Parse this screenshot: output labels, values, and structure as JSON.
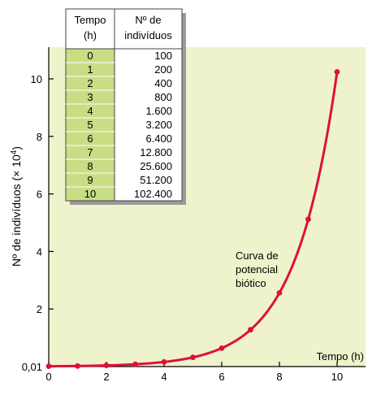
{
  "colors": {
    "plot_background": "#eef3cc",
    "curve": "#e0103c",
    "table_time_column": "#c9dd84",
    "table_header": "#ffffff",
    "table_values": "#ffffff"
  },
  "chart_data": {
    "type": "line",
    "title": "",
    "xlabel": "Tempo (h)",
    "ylabel_main": "Nº de indivíduos (× 10",
    "ylabel_exp": "4",
    "ylabel_close": ")",
    "xlim": [
      0,
      11
    ],
    "ylim": [
      0,
      11
    ],
    "x_ticks": [
      0,
      2,
      4,
      6,
      8,
      10
    ],
    "x_tick_labels": [
      "0",
      "2",
      "4",
      "6",
      "8",
      "10"
    ],
    "y_ticks": [
      0,
      2,
      4,
      6,
      8,
      10
    ],
    "y_tick_labels": [
      "0,01",
      "2",
      "4",
      "6",
      "8",
      "10"
    ],
    "grid": false,
    "annotation": [
      "Curva de",
      "potencial",
      "biótico"
    ],
    "series": [
      {
        "x": [
          0,
          1,
          2,
          3,
          4,
          5,
          6,
          7,
          8,
          9,
          10
        ],
        "y": [
          0.01,
          0.02,
          0.04,
          0.08,
          0.16,
          0.32,
          0.64,
          1.28,
          2.56,
          5.12,
          10.24
        ]
      }
    ]
  },
  "table": {
    "header_time": [
      "Tempo",
      "(h)"
    ],
    "header_count": [
      "Nº de",
      "indivíduos"
    ],
    "rows": [
      {
        "time": "0",
        "count": "100"
      },
      {
        "time": "1",
        "count": "200"
      },
      {
        "time": "2",
        "count": "400"
      },
      {
        "time": "3",
        "count": "800"
      },
      {
        "time": "4",
        "count": "1.600"
      },
      {
        "time": "5",
        "count": "3.200"
      },
      {
        "time": "6",
        "count": "6.400"
      },
      {
        "time": "7",
        "count": "12.800"
      },
      {
        "time": "8",
        "count": "25.600"
      },
      {
        "time": "9",
        "count": "51.200"
      },
      {
        "time": "10",
        "count": "102.400"
      }
    ]
  }
}
